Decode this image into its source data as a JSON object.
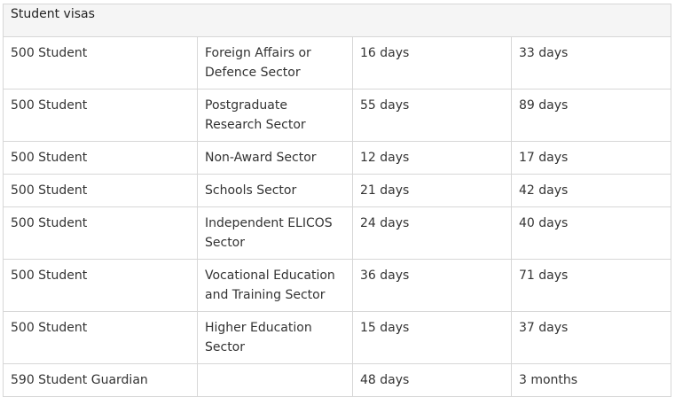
{
  "table": {
    "section_title": "Student visas",
    "rows": [
      {
        "visa": "500 Student",
        "sector": "Foreign Affairs or Defence Sector",
        "col3": "16 days",
        "col4": "33 days"
      },
      {
        "visa": "500 Student",
        "sector": "Postgraduate Research Sector",
        "col3": "55 days",
        "col4": "89 days"
      },
      {
        "visa": "500 Student",
        "sector": "Non-Award Sector",
        "col3": "12 days",
        "col4": "17 days"
      },
      {
        "visa": "500 Student",
        "sector": "Schools Sector",
        "col3": "21 days",
        "col4": "42 days"
      },
      {
        "visa": "500 Student",
        "sector": "Independent ELICOS Sector",
        "col3": "24 days",
        "col4": "40 days"
      },
      {
        "visa": "500 Student",
        "sector": "Vocational Education and Training Sector",
        "col3": "36 days",
        "col4": "71 days"
      },
      {
        "visa": "500 Student",
        "sector": "Higher Education Sector",
        "col3": "15 days",
        "col4": "37 days"
      },
      {
        "visa": "590 Student Guardian",
        "sector": "",
        "col3": "48 days",
        "col4": "3 months"
      }
    ]
  }
}
